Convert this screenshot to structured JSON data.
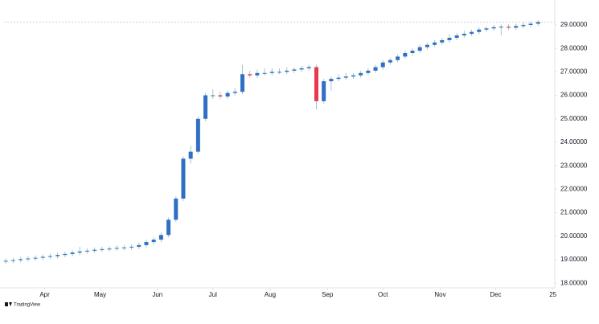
{
  "chart_data": {
    "type": "candlestick",
    "x": [
      70,
      74,
      78,
      82,
      86,
      90,
      94,
      98,
      102,
      106,
      110,
      114,
      118,
      122,
      126,
      130,
      134,
      138,
      142,
      146,
      150,
      154,
      158,
      162,
      166,
      170,
      174,
      178,
      182,
      186,
      190,
      194,
      198,
      202,
      206,
      210,
      214,
      218,
      222,
      226,
      230,
      234,
      238,
      242,
      246,
      250,
      254,
      258,
      262,
      266,
      270,
      274,
      278,
      282,
      286,
      290,
      294,
      298,
      302,
      306,
      310,
      314,
      318,
      322,
      326,
      330,
      334,
      338,
      342,
      346,
      350,
      354,
      358
    ],
    "open": [
      18.92,
      18.95,
      18.98,
      19.02,
      19.05,
      19.08,
      19.12,
      19.15,
      19.2,
      19.24,
      19.3,
      19.35,
      19.38,
      19.42,
      19.45,
      19.47,
      19.5,
      19.52,
      19.55,
      19.62,
      19.75,
      19.85,
      20.05,
      20.7,
      21.6,
      23.3,
      23.6,
      25.0,
      26.0,
      26.0,
      25.95,
      26.1,
      26.15,
      26.9,
      26.85,
      26.95,
      26.95,
      27.0,
      27.0,
      27.05,
      27.1,
      27.15,
      27.2,
      25.75,
      26.6,
      26.7,
      26.75,
      26.8,
      26.85,
      26.95,
      27.05,
      27.2,
      27.4,
      27.5,
      27.65,
      27.8,
      27.9,
      28.05,
      28.15,
      28.25,
      28.35,
      28.45,
      28.55,
      28.62,
      28.7,
      28.8,
      28.85,
      28.9,
      28.92,
      28.88,
      28.95,
      29.0,
      29.05
    ],
    "high": [
      19.05,
      19.08,
      19.12,
      19.15,
      19.18,
      19.22,
      19.25,
      19.3,
      19.34,
      19.4,
      19.55,
      19.48,
      19.52,
      19.55,
      19.57,
      19.6,
      19.62,
      19.65,
      19.72,
      19.85,
      19.95,
      20.15,
      20.8,
      21.7,
      23.4,
      23.85,
      25.1,
      26.1,
      26.25,
      26.15,
      26.2,
      26.3,
      27.3,
      27.05,
      27.1,
      27.15,
      27.15,
      27.15,
      27.2,
      27.2,
      27.25,
      27.3,
      27.3,
      26.7,
      26.8,
      26.9,
      26.95,
      26.95,
      27.05,
      27.15,
      27.3,
      27.5,
      27.6,
      27.75,
      27.9,
      28.0,
      28.15,
      28.25,
      28.35,
      28.45,
      28.6,
      28.65,
      28.75,
      28.8,
      28.9,
      28.95,
      29.0,
      29.02,
      29.02,
      29.05,
      29.1,
      29.15,
      29.2
    ],
    "low": [
      18.82,
      18.85,
      18.88,
      18.92,
      18.95,
      18.98,
      19.02,
      19.05,
      19.1,
      19.14,
      19.2,
      19.25,
      19.28,
      19.32,
      19.35,
      19.37,
      19.4,
      19.42,
      19.45,
      19.52,
      19.65,
      19.75,
      19.95,
      20.6,
      21.5,
      23.1,
      23.5,
      24.9,
      25.85,
      25.85,
      25.85,
      26.0,
      26.05,
      26.75,
      26.75,
      26.85,
      26.85,
      26.9,
      26.9,
      26.95,
      27.0,
      27.05,
      25.4,
      25.65,
      26.2,
      26.6,
      26.65,
      26.7,
      26.75,
      26.85,
      26.95,
      27.1,
      27.3,
      27.4,
      27.55,
      27.7,
      27.8,
      27.95,
      28.05,
      28.15,
      28.25,
      28.35,
      28.45,
      28.52,
      28.6,
      28.7,
      28.75,
      28.55,
      28.78,
      28.78,
      28.85,
      28.9,
      28.95
    ],
    "close": [
      18.95,
      18.98,
      19.02,
      19.05,
      19.08,
      19.12,
      19.15,
      19.2,
      19.24,
      19.3,
      19.35,
      19.38,
      19.42,
      19.45,
      19.47,
      19.5,
      19.52,
      19.55,
      19.62,
      19.75,
      19.85,
      20.05,
      20.7,
      21.6,
      23.3,
      23.6,
      25.0,
      26.0,
      26.0,
      25.95,
      26.1,
      26.15,
      26.9,
      26.85,
      26.95,
      26.95,
      27.0,
      27.0,
      27.05,
      27.1,
      27.15,
      27.2,
      25.75,
      26.6,
      26.7,
      26.75,
      26.8,
      26.85,
      26.95,
      27.05,
      27.2,
      27.4,
      27.5,
      27.65,
      27.8,
      27.9,
      28.05,
      28.15,
      28.25,
      28.35,
      28.45,
      28.55,
      28.62,
      28.7,
      28.8,
      28.85,
      28.9,
      28.92,
      28.88,
      28.95,
      29.0,
      29.05,
      29.12
    ],
    "up_color": "#2f6fc4",
    "down_color": "#e8384f",
    "wick_color": "#9cc9c4",
    "xlim": [
      69,
      367
    ],
    "ylim": [
      17.8,
      30.06
    ],
    "xticks": [
      {
        "value": 91,
        "label": "Apr"
      },
      {
        "value": 121,
        "label": "May"
      },
      {
        "value": 152,
        "label": "Jun"
      },
      {
        "value": 182,
        "label": "Jul"
      },
      {
        "value": 213,
        "label": "Aug"
      },
      {
        "value": 244,
        "label": "Sep"
      },
      {
        "value": 274,
        "label": "Oct"
      },
      {
        "value": 305,
        "label": "Nov"
      },
      {
        "value": 335,
        "label": "Dec"
      },
      {
        "value": 366,
        "label": "25"
      }
    ],
    "yticks": [
      {
        "value": 18,
        "label": "18.00000"
      },
      {
        "value": 19,
        "label": "19.00000"
      },
      {
        "value": 20,
        "label": "20.00000"
      },
      {
        "value": 21,
        "label": "21.00000"
      },
      {
        "value": 22,
        "label": "22.00000"
      },
      {
        "value": 23,
        "label": "23.00000"
      },
      {
        "value": 24,
        "label": "24.00000"
      },
      {
        "value": 25,
        "label": "25.00000"
      },
      {
        "value": 26,
        "label": "26.00000"
      },
      {
        "value": 27,
        "label": "27.00000"
      },
      {
        "value": 28,
        "label": "28.00000"
      },
      {
        "value": 29,
        "label": "29.00000"
      }
    ],
    "footer": "TradingView"
  }
}
